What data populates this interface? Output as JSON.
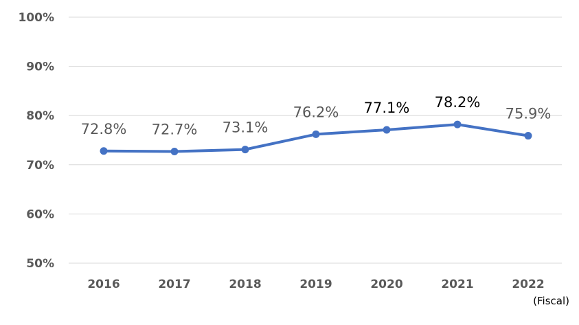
{
  "chart_data": {
    "type": "line",
    "categories": [
      "2016",
      "2017",
      "2018",
      "2019",
      "2020",
      "2021",
      "2022"
    ],
    "series": [
      {
        "values": [
          72.8,
          72.7,
          73.1,
          76.2,
          77.1,
          78.2,
          75.9
        ],
        "data_labels": [
          "72.8%",
          "72.7%",
          "73.1%",
          "76.2%",
          "77.1%",
          "78.2%",
          "75.9%"
        ],
        "data_label_colors": [
          "#595959",
          "#595959",
          "#595959",
          "#595959",
          "#000000",
          "#000000",
          "#595959"
        ]
      }
    ],
    "y_ticks": [
      {
        "value": 50,
        "label": "50%"
      },
      {
        "value": 60,
        "label": "60%"
      },
      {
        "value": 70,
        "label": "70%"
      },
      {
        "value": 80,
        "label": "80%"
      },
      {
        "value": 90,
        "label": "90%"
      },
      {
        "value": 100,
        "label": "100%"
      }
    ],
    "ylim": [
      50,
      100
    ],
    "xlabel": "(Fiscal)",
    "ylabel": "",
    "title": "",
    "grid": true,
    "legend": "none",
    "colors": {
      "line": "#4472c4",
      "grid": "#d9d9d9",
      "tick_text": "#595959"
    }
  }
}
